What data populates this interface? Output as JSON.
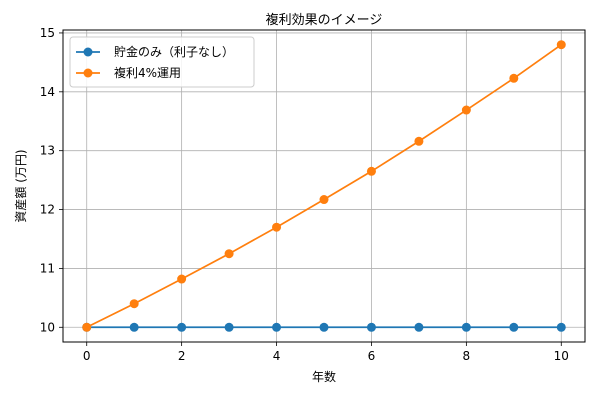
{
  "chart_data": {
    "type": "line",
    "title": "複利効果のイメージ",
    "xlabel": "年数",
    "ylabel": "資産額 (万円)",
    "x": [
      0,
      1,
      2,
      3,
      4,
      5,
      6,
      7,
      8,
      9,
      10
    ],
    "xlim": [
      -0.5,
      10.5
    ],
    "ylim": [
      9.75,
      15.05
    ],
    "xticks": [
      0,
      2,
      4,
      6,
      8,
      10
    ],
    "yticks": [
      10,
      11,
      12,
      13,
      14,
      15
    ],
    "grid": true,
    "legend_position": "top-left",
    "series": [
      {
        "name": "貯金のみ（利子なし）",
        "color": "#1f77b4",
        "values": [
          10,
          10,
          10,
          10,
          10,
          10,
          10,
          10,
          10,
          10,
          10
        ]
      },
      {
        "name": "複利4%運用",
        "color": "#ff7f0e",
        "values": [
          10,
          10.4,
          10.82,
          11.25,
          11.7,
          12.17,
          12.65,
          13.16,
          13.69,
          14.23,
          14.8
        ]
      }
    ]
  }
}
